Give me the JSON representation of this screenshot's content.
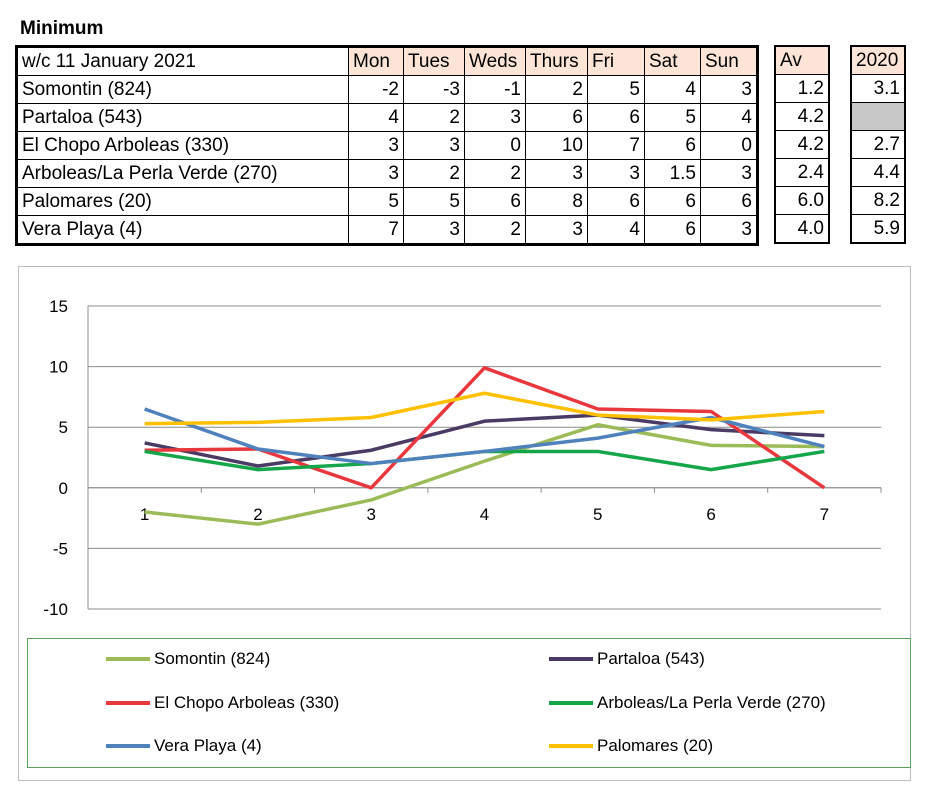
{
  "heading": "Minimum",
  "table": {
    "week_label": "w/c 11 January 2021",
    "days": [
      "Mon",
      "Tues",
      "Weds",
      "Thurs",
      "Fri",
      "Sat",
      "Sun"
    ],
    "av_label": "Av",
    "prev_label": "2020",
    "rows": [
      {
        "location": "Somontin (824)",
        "values": [
          "-2",
          "-3",
          "-1",
          "2",
          "5",
          "4",
          "3"
        ],
        "av": "1.2",
        "prev": "3.1"
      },
      {
        "location": "Partaloa (543)",
        "values": [
          "4",
          "2",
          "3",
          "6",
          "6",
          "5",
          "4"
        ],
        "av": "4.2",
        "prev": ""
      },
      {
        "location": "El Chopo Arboleas (330)",
        "values": [
          "3",
          "3",
          "0",
          "10",
          "7",
          "6",
          "0"
        ],
        "av": "4.2",
        "prev": "2.7"
      },
      {
        "location": "Arboleas/La Perla Verde (270)",
        "values": [
          "3",
          "2",
          "2",
          "3",
          "3",
          "1.5",
          "3"
        ],
        "av": "2.4",
        "prev": "4.4"
      },
      {
        "location": "Palomares (20)",
        "values": [
          "5",
          "5",
          "6",
          "8",
          "6",
          "6",
          "6"
        ],
        "av": "6.0",
        "prev": "8.2"
      },
      {
        "location": "Vera Playa (4)",
        "values": [
          "7",
          "3",
          "2",
          "3",
          "4",
          "6",
          "3"
        ],
        "av": "4.0",
        "prev": "5.9"
      }
    ]
  },
  "chart_data": {
    "type": "line",
    "x": [
      1,
      2,
      3,
      4,
      5,
      6,
      7
    ],
    "ylim": [
      -10,
      15
    ],
    "yticks": [
      -10,
      -5,
      0,
      5,
      10,
      15
    ],
    "grid": true,
    "legend_position": "bottom",
    "series": [
      {
        "name": "Somontin (824)",
        "color": "#9bbb59",
        "values": [
          -2,
          -3,
          -1,
          2.2,
          5.2,
          3.5,
          3.4
        ]
      },
      {
        "name": "Partaloa (543)",
        "color": "#4b3a63",
        "values": [
          3.7,
          1.8,
          3.1,
          5.5,
          6.0,
          4.8,
          4.3
        ]
      },
      {
        "name": "El Chopo Arboleas (330)",
        "color": "#e8383d",
        "values": [
          3.1,
          3.2,
          0,
          9.9,
          6.5,
          6.3,
          0
        ]
      },
      {
        "name": "Arboleas/La Perla Verde (270)",
        "color": "#16a64a",
        "values": [
          3.0,
          1.5,
          2.0,
          3.0,
          3.0,
          1.5,
          3.0
        ]
      },
      {
        "name": "Vera Playa (4)",
        "color": "#4f81bd",
        "values": [
          6.5,
          3.2,
          2.0,
          3.0,
          4.1,
          5.8,
          3.4
        ]
      },
      {
        "name": "Palomares (20)",
        "color": "#ffc000",
        "values": [
          5.3,
          5.4,
          5.8,
          7.8,
          6.0,
          5.6,
          6.3
        ]
      }
    ]
  }
}
